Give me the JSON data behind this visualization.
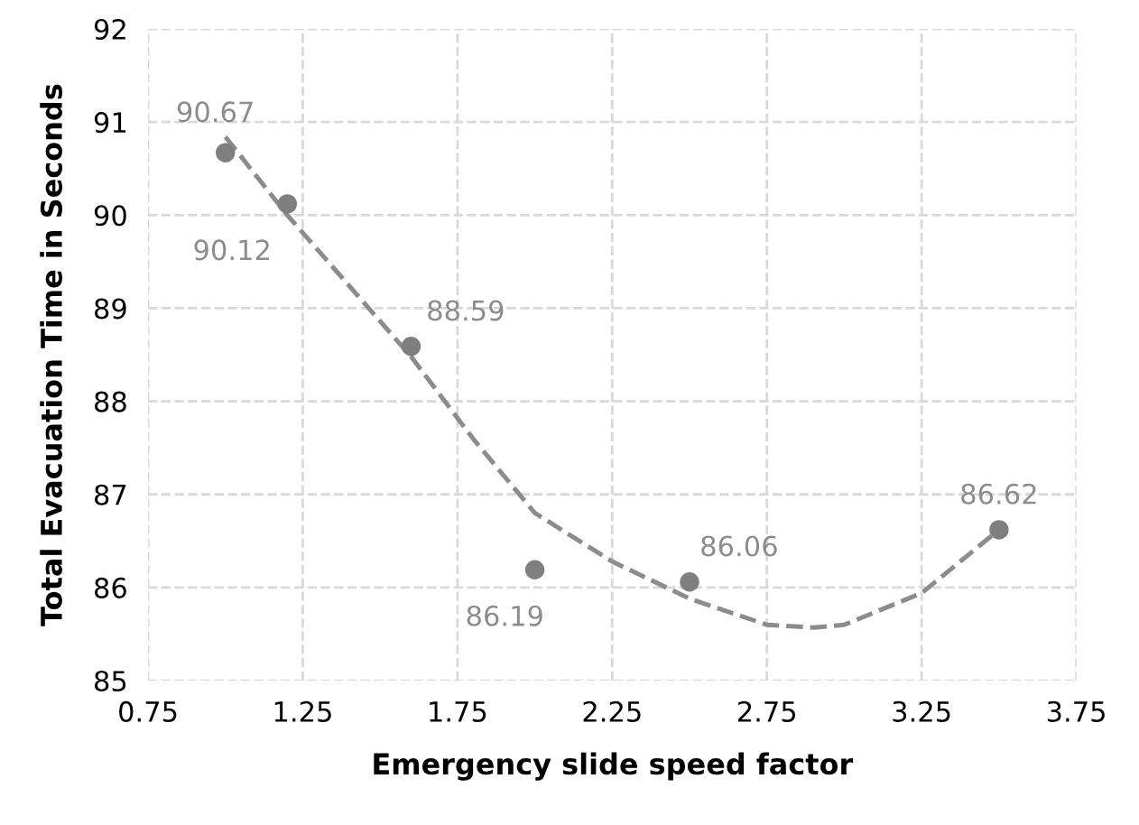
{
  "chart_data": {
    "type": "scatter",
    "xlabel": "Emergency slide speed factor",
    "ylabel": "Total Evacuation Time in Seconds",
    "xlim": [
      0.75,
      3.75
    ],
    "xticks": [
      0.75,
      1.25,
      1.75,
      2.25,
      2.75,
      3.25,
      3.75
    ],
    "ylim": [
      85,
      92
    ],
    "yticks": [
      85,
      86,
      87,
      88,
      89,
      90,
      91,
      92
    ],
    "grid": true,
    "series": [
      {
        "color": "#7f7f7f",
        "marker": "circle",
        "data_labels": true,
        "x": [
          1.0,
          1.2,
          1.6,
          2.0,
          2.5,
          3.5
        ],
        "values": [
          90.67,
          90.12,
          88.59,
          86.19,
          86.06,
          86.62
        ]
      },
      {
        "type": "line",
        "color": "#8c8c8c",
        "line_style": "dashed",
        "marker": "none",
        "x": [
          1.0,
          1.2,
          1.4,
          1.6,
          1.8,
          2.0,
          2.25,
          2.5,
          2.75,
          2.9,
          3.0,
          3.25,
          3.5
        ],
        "values": [
          90.84,
          90.0,
          89.24,
          88.48,
          87.6,
          86.8,
          86.28,
          85.88,
          85.6,
          85.57,
          85.6,
          85.94,
          86.62
        ]
      }
    ]
  }
}
